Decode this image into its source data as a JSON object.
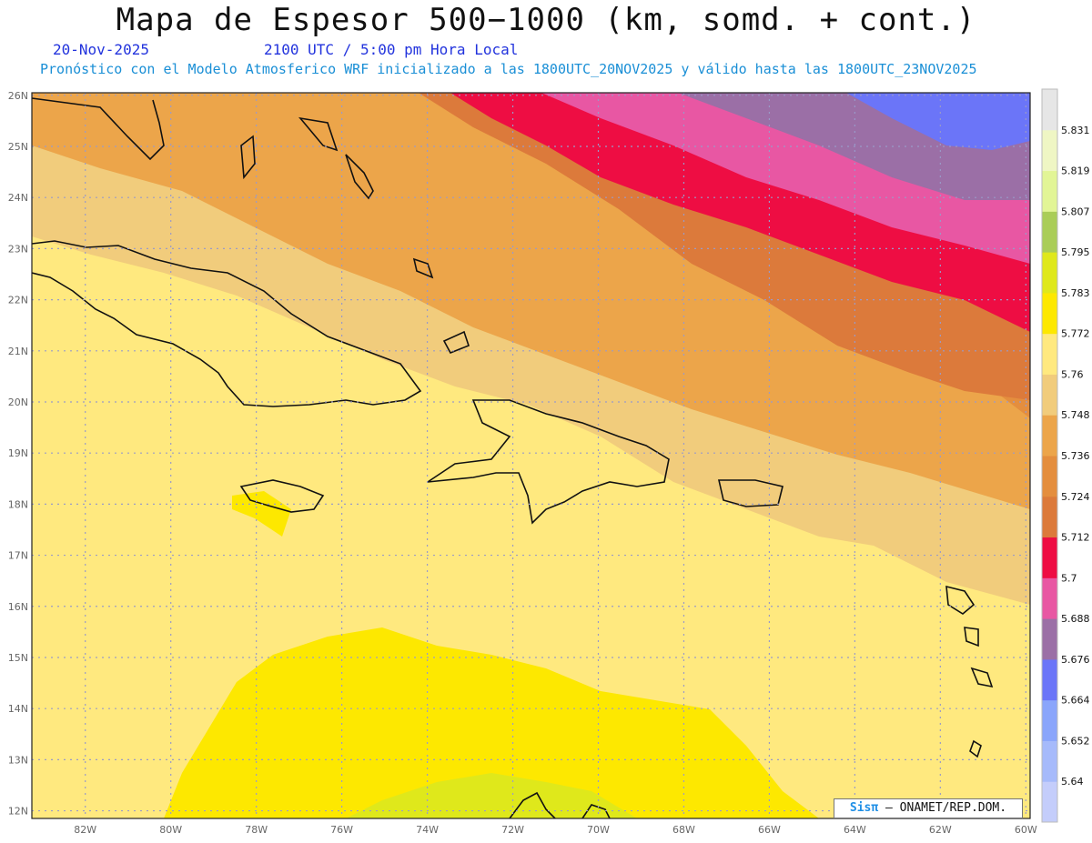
{
  "header": {
    "title": "Mapa de Espesor 500−1000 (km, somd. + cont.)",
    "date": "20-Nov-2025",
    "time": "2100 UTC / 5:00 pm Hora Local",
    "forecast": "Pronóstico con el Modelo Atmosferico WRF inicializado a las 1800UTC_20NOV2025 y válido hasta las  1800UTC_23NOV2025"
  },
  "map": {
    "lat_labels": [
      "26N",
      "25N",
      "24N",
      "23N",
      "22N",
      "21N",
      "20N",
      "19N",
      "18N",
      "17N",
      "16N",
      "15N",
      "14N",
      "13N",
      "12N"
    ],
    "lon_labels": [
      "82W",
      "80W",
      "78W",
      "76W",
      "74W",
      "72W",
      "70W",
      "68W",
      "66W",
      "64W",
      "62W",
      "60W"
    ],
    "lat_range": [
      11.85,
      26.05
    ],
    "lon_range": [
      -83.25,
      -59.9
    ],
    "grid": true
  },
  "legend": {
    "levels": [
      "5.64",
      "5.652",
      "5.664",
      "5.676",
      "5.688",
      "5.7",
      "5.712",
      "5.724",
      "5.736",
      "5.748",
      "5.76",
      "5.772",
      "5.783",
      "5.795",
      "5.807",
      "5.819",
      "5.831"
    ],
    "colors": [
      "#c4cdfb",
      "#a6bafb",
      "#8aa5fb",
      "#6b75f8",
      "#9b6fa6",
      "#e857a3",
      "#ee0d43",
      "#dc7a3b",
      "#e48e3e",
      "#eca54a",
      "#f1cc7c",
      "#ffe97f",
      "#fde800",
      "#dfe81b",
      "#aacd58",
      "#e2f596",
      "#eff6c4",
      "#e6e6e6"
    ]
  },
  "credit": {
    "logo": "Sisπ",
    "text": "– ONAMET/REP.DOM."
  }
}
